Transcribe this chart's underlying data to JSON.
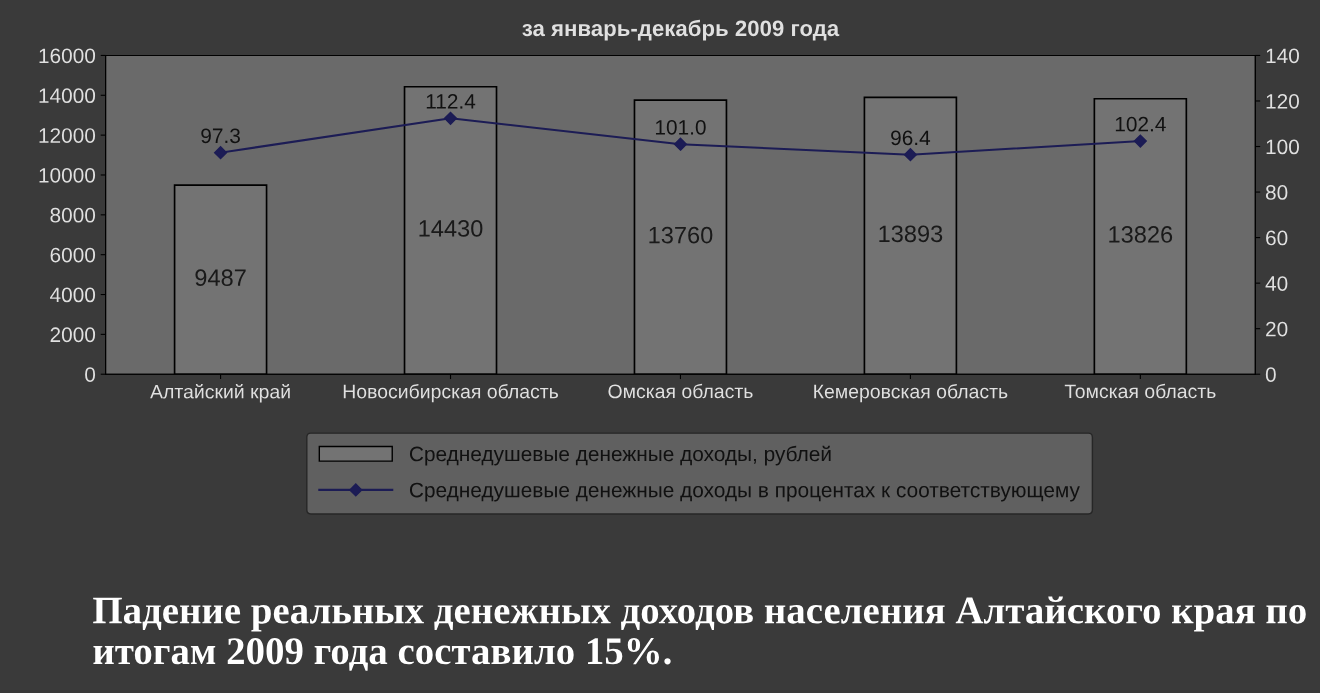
{
  "chart_data": {
    "type": "bar",
    "title": "за январь-декабрь 2009 года",
    "categories": [
      "Алтайский край",
      "Новосибирская область",
      "Омская область",
      "Кемеровская область",
      "Томская область"
    ],
    "series": [
      {
        "name": "Среднедушевые денежные доходы, рублей",
        "color": "#737373",
        "values": [
          9487,
          14430,
          13760,
          13893,
          13826
        ]
      },
      {
        "name": "Среднедушевые денежные доходы в процентах к соответствующему",
        "type": "line",
        "axis": "y2",
        "color": "#1c1c55",
        "marker": "diamond",
        "values": [
          97.3,
          112.4,
          101.0,
          96.4,
          102.4
        ],
        "value_labels": [
          "97.3",
          "112.4",
          "101.0",
          "96.4",
          "102.4"
        ]
      }
    ],
    "ylim": [
      0,
      16000
    ],
    "yticks": [
      0,
      2000,
      4000,
      6000,
      8000,
      10000,
      12000,
      14000,
      16000
    ],
    "y2lim": [
      0,
      140
    ],
    "y2ticks": [
      0,
      20,
      40,
      60,
      80,
      100,
      120,
      140
    ],
    "data_labels": true,
    "grid": false,
    "legend": "bottom",
    "annotations": [
      "Падение реальных денежных доходов населения Алтайского края по итогам 2009 года составило 15%."
    ]
  }
}
